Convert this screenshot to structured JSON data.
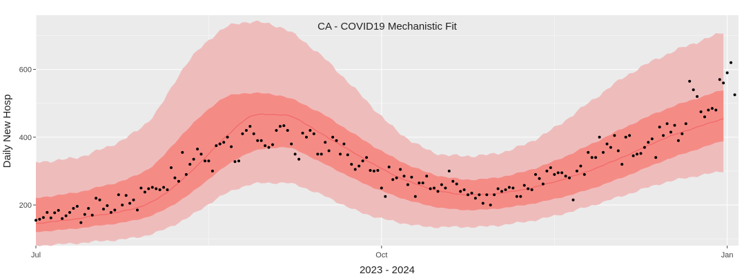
{
  "chart_data": {
    "type": "line",
    "title": "CA - COVID19 Mechanistic Fit",
    "xlabel": "2023 - 2024",
    "ylabel": "Daily New Hosp",
    "x_range": [
      "2023-07-01",
      "2024-01-04"
    ],
    "ylim": [
      80,
      760
    ],
    "x_ticks": [
      {
        "date": "2023-07-01",
        "label": "Jul"
      },
      {
        "date": "2023-10-01",
        "label": "Oct"
      },
      {
        "date": "2024-01-01",
        "label": "Jan"
      }
    ],
    "y_ticks": [
      200,
      400,
      600
    ],
    "grid": true,
    "legend": "none",
    "colors": {
      "background": "#ebebeb",
      "outer_band": "#efbcbc",
      "inner_band": "#f48c85",
      "median_line": "#f26d6d",
      "observed": "#000000"
    },
    "model_anchors": {
      "dates": [
        "2023-07-01",
        "2023-07-15",
        "2023-08-01",
        "2023-08-10",
        "2023-08-20",
        "2023-08-27",
        "2023-09-05",
        "2023-09-15",
        "2023-09-25",
        "2023-10-05",
        "2023-10-15",
        "2023-10-25",
        "2023-11-05",
        "2023-11-15",
        "2023-11-25",
        "2023-12-05",
        "2023-12-15",
        "2023-12-31"
      ],
      "median": [
        145,
        165,
        210,
        285,
        395,
        460,
        465,
        410,
        345,
        285,
        245,
        230,
        240,
        265,
        300,
        345,
        395,
        455
      ],
      "inner_lower": [
        120,
        135,
        170,
        225,
        310,
        355,
        370,
        325,
        270,
        225,
        195,
        185,
        195,
        215,
        245,
        285,
        330,
        390
      ],
      "inner_upper": [
        220,
        245,
        315,
        420,
        515,
        530,
        520,
        470,
        400,
        335,
        290,
        275,
        290,
        325,
        375,
        430,
        480,
        540
      ],
      "outer_lower": [
        80,
        90,
        115,
        160,
        230,
        260,
        265,
        230,
        180,
        150,
        135,
        135,
        145,
        165,
        195,
        230,
        265,
        300
      ],
      "outer_upper": [
        325,
        350,
        460,
        615,
        720,
        740,
        720,
        640,
        530,
        420,
        355,
        345,
        365,
        420,
        500,
        580,
        640,
        710
      ]
    },
    "observed": {
      "start_date": "2023-07-01",
      "values": [
        155,
        158,
        163,
        178,
        162,
        177,
        184,
        160,
        168,
        178,
        190,
        196,
        148,
        172,
        190,
        170,
        220,
        215,
        188,
        198,
        178,
        185,
        230,
        200,
        228,
        205,
        215,
        185,
        250,
        238,
        248,
        252,
        248,
        245,
        252,
        245,
        310,
        280,
        270,
        355,
        290,
        320,
        335,
        365,
        350,
        330,
        330,
        300,
        375,
        380,
        385,
        400,
        372,
        328,
        330,
        410,
        420,
        432,
        410,
        390,
        390,
        375,
        370,
        378,
        420,
        432,
        434,
        420,
        380,
        350,
        335,
        412,
        400,
        420,
        410,
        350,
        350,
        385,
        360,
        400,
        390,
        350,
        380,
        348,
        320,
        305,
        315,
        330,
        340,
        302,
        300,
        302,
        250,
        225,
        312,
        275,
        280,
        305,
        285,
        260,
        282,
        225,
        265,
        265,
        285,
        248,
        250,
        240,
        260,
        250,
        300,
        270,
        262,
        240,
        245,
        230,
        235,
        220,
        230,
        205,
        230,
        200,
        230,
        248,
        240,
        245,
        252,
        250,
        225,
        225,
        258,
        248,
        245,
        290,
        278,
        262,
        300,
        310,
        290,
        295,
        295,
        285,
        280,
        215,
        300,
        315,
        290,
        355,
        340,
        340,
        400,
        355,
        380,
        370,
        405,
        360,
        320,
        400,
        405,
        345,
        350,
        352,
        370,
        385,
        395,
        340,
        430,
        405,
        440,
        415,
        435,
        390,
        410,
        440,
        565,
        540,
        520,
        475,
        460,
        480,
        485,
        480,
        570,
        560,
        590,
        620,
        525
      ]
    }
  }
}
